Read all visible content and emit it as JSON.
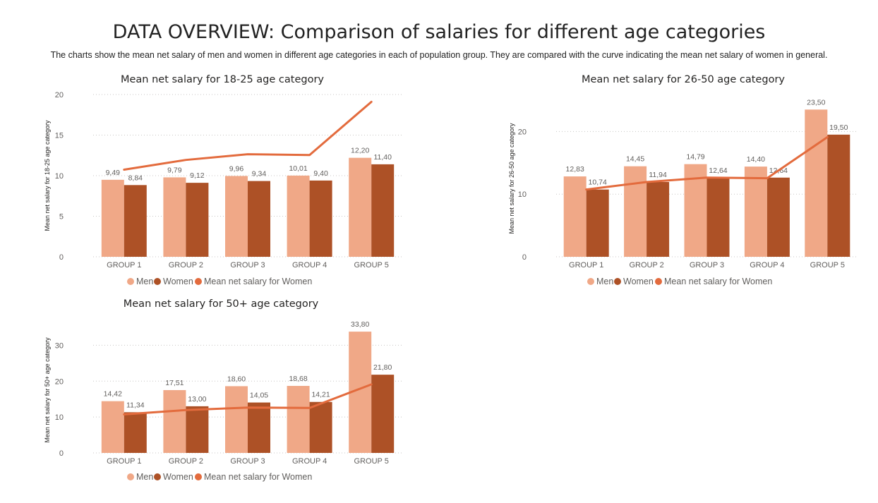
{
  "header": {
    "title": "DATA OVERVIEW: Comparison of salaries for different age categories",
    "subtitle": "The charts show the mean net salary of men and women in different age categories in each of population group. They are compared with the curve indicating the mean net salary of women in general."
  },
  "colors": {
    "men": "#f0a887",
    "women": "#ad5126",
    "line": "#e36b3d"
  },
  "chart_data": [
    {
      "type": "bar",
      "title": "Mean net salary for 18-25 age category",
      "xlabel": "",
      "ylabel": "Mean net salary for 18-25 age category",
      "categories": [
        "GROUP 1",
        "GROUP 2",
        "GROUP 3",
        "GROUP 4",
        "GROUP 5"
      ],
      "ylim": [
        0,
        20
      ],
      "yticks": [
        0,
        5,
        10,
        15,
        20
      ],
      "series": [
        {
          "name": "Men",
          "kind": "bar",
          "values": [
            9.49,
            9.79,
            9.96,
            10.01,
            12.2
          ],
          "labels": [
            "9,49",
            "9,79",
            "9,96",
            "10,01",
            "12,20"
          ]
        },
        {
          "name": "Women",
          "kind": "bar",
          "values": [
            8.84,
            9.12,
            9.34,
            9.4,
            11.4
          ],
          "labels": [
            "8,84",
            "9,12",
            "9,34",
            "9,40",
            "11,40"
          ]
        },
        {
          "name": "Mean net salary for Women",
          "kind": "line",
          "values": [
            10.74,
            11.94,
            12.64,
            12.54,
            19.1
          ]
        }
      ],
      "grid": true,
      "legend": "bottom"
    },
    {
      "type": "bar",
      "title": "Mean net salary for 26-50 age category",
      "xlabel": "",
      "ylabel": "Mean net salary for 26-50 age category",
      "categories": [
        "GROUP 1",
        "GROUP 2",
        "GROUP 3",
        "GROUP 4",
        "GROUP 5"
      ],
      "ylim": [
        0,
        25
      ],
      "yticks": [
        0,
        10,
        20
      ],
      "series": [
        {
          "name": "Men",
          "kind": "bar",
          "values": [
            12.83,
            14.45,
            14.79,
            14.4,
            23.5
          ],
          "labels": [
            "12,83",
            "14,45",
            "14,79",
            "14,40",
            "23,50"
          ]
        },
        {
          "name": "Women",
          "kind": "bar",
          "values": [
            10.74,
            11.94,
            12.64,
            12.64,
            19.5
          ],
          "labels": [
            "10,74",
            "11,94",
            "12,64",
            "12,64",
            "19,50"
          ]
        },
        {
          "name": "Mean net salary for Women",
          "kind": "line",
          "values": [
            10.74,
            11.94,
            12.64,
            12.54,
            19.1
          ]
        }
      ],
      "grid": true,
      "legend": "bottom"
    },
    {
      "type": "bar",
      "title": "Mean net salary for 50+ age category",
      "xlabel": "",
      "ylabel": "Mean net salary for 50+ age category",
      "categories": [
        "GROUP 1",
        "GROUP 2",
        "GROUP 3",
        "GROUP 4",
        "GROUP 5"
      ],
      "ylim": [
        0,
        35
      ],
      "yticks": [
        0,
        10,
        20,
        30
      ],
      "series": [
        {
          "name": "Men",
          "kind": "bar",
          "values": [
            14.42,
            17.51,
            18.6,
            18.68,
            33.8
          ],
          "labels": [
            "14,42",
            "17,51",
            "18,60",
            "18,68",
            "33,80"
          ]
        },
        {
          "name": "Women",
          "kind": "bar",
          "values": [
            11.34,
            13.0,
            14.05,
            14.21,
            21.8
          ],
          "labels": [
            "11,34",
            "13,00",
            "14,05",
            "14,21",
            "21,80"
          ]
        },
        {
          "name": "Mean net salary for Women",
          "kind": "line",
          "values": [
            10.74,
            11.94,
            12.64,
            12.54,
            19.1
          ]
        }
      ],
      "grid": true,
      "legend": "bottom"
    }
  ]
}
